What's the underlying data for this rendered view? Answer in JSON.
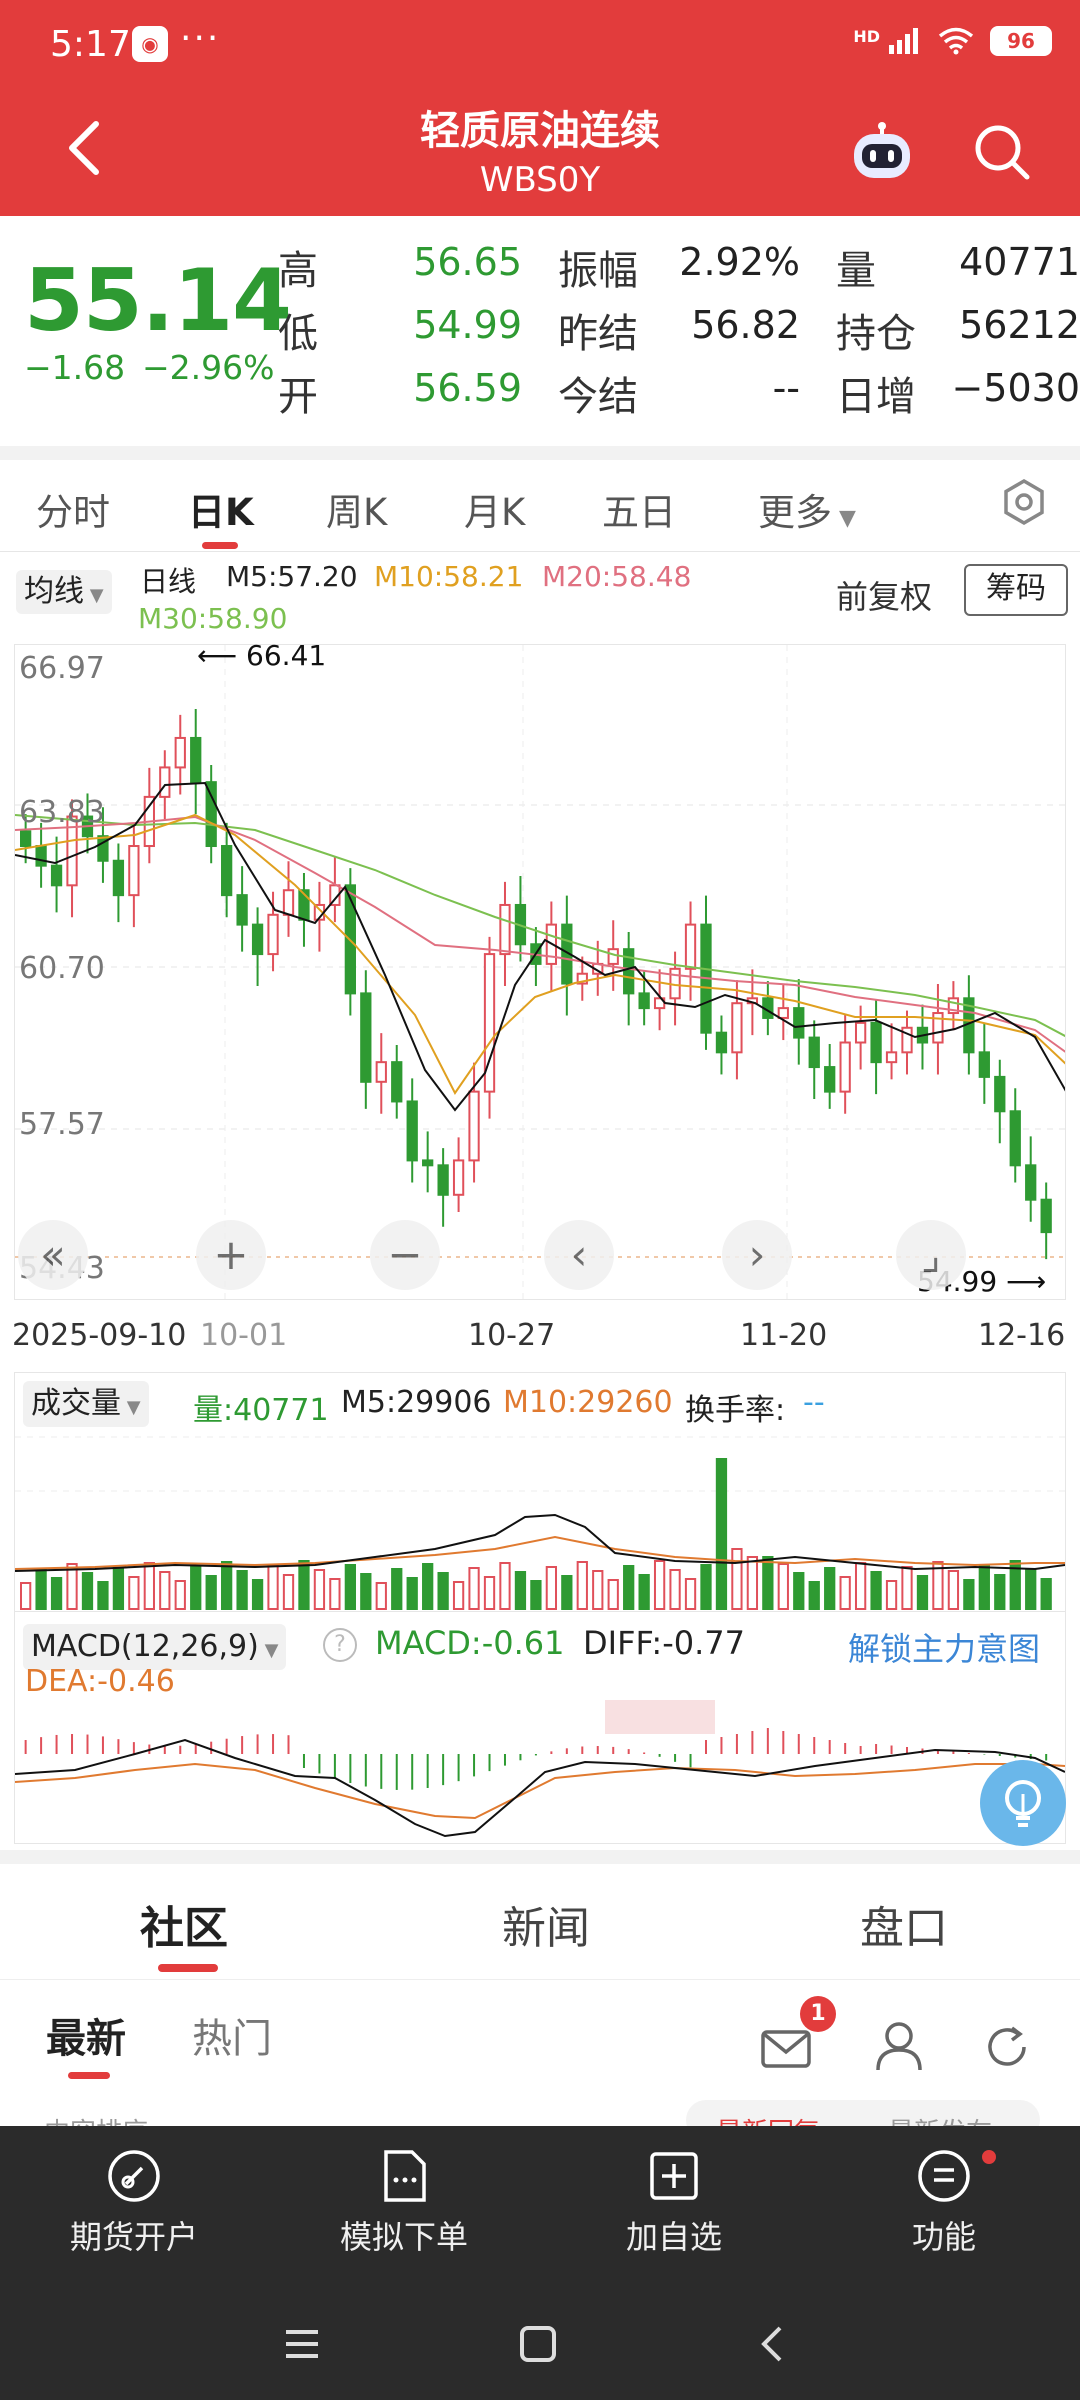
{
  "status_bar": {
    "time": "5:17",
    "app_icon": "app-badge-icon",
    "dots": "···",
    "hd": "HD",
    "battery": "96"
  },
  "header": {
    "title": "轻质原油连续",
    "subtitle": "WBS0Y"
  },
  "quote": {
    "last": "55.14",
    "change": "−1.68",
    "change_pct": "−2.96%",
    "high_label": "高",
    "high": "56.65",
    "low_label": "低",
    "low": "54.99",
    "open_label": "开",
    "open": "56.59",
    "amplitude_label": "振幅",
    "amplitude": "2.92%",
    "prev_settle_label": "昨结",
    "prev_settle": "56.82",
    "settle_label": "今结",
    "settle": "--",
    "volume_label": "量",
    "volume": "40771",
    "open_interest_label": "持仓",
    "open_interest": "56212",
    "daily_change_label": "日增",
    "daily_change": "−5030"
  },
  "period_tabs": [
    "分时",
    "日K",
    "周K",
    "月K",
    "五日",
    "更多"
  ],
  "ma": {
    "selector": "均线",
    "kind": "日线",
    "m5": "M5:57.20",
    "m10": "M10:58.21",
    "m20": "M20:58.48",
    "m30": "M30:58.90",
    "adjust": "前复权",
    "chip": "筹码"
  },
  "price_axis": [
    "66.97",
    "63.83",
    "60.70",
    "57.57",
    "54.43"
  ],
  "date_axis": [
    "2025-09-10",
    "10-01",
    "10-27",
    "11-20",
    "12-16"
  ],
  "marks": {
    "max": "66.41",
    "min": "54.99"
  },
  "volume": {
    "selector": "成交量",
    "vol": "量:40771",
    "m5": "M5:29906",
    "m10": "M10:29260",
    "turnover_label": "换手率:",
    "turnover": "--"
  },
  "macd": {
    "selector": "MACD(12,26,9)",
    "macd": "MACD:-0.61",
    "diff": "DIFF:-0.77",
    "dea": "DEA:-0.46",
    "unlock": "解锁主力意图"
  },
  "section_tabs": [
    "社区",
    "新闻",
    "盘口"
  ],
  "feed_tabs": [
    "最新",
    "热门"
  ],
  "mail_badge": "1",
  "peek": {
    "left": "内容排序",
    "r1": "最新回复",
    "r2": "最新发布"
  },
  "bottom_nav": [
    "期货开户",
    "模拟下单",
    "加自选",
    "功能"
  ],
  "colors": {
    "brand_red": "#e23c3c",
    "down_green": "#2e9a32",
    "up_red": "#e0505a",
    "m10": "#e0a020",
    "m20": "#e07080",
    "m30": "#7cc050"
  },
  "chart_data": {
    "type": "candlestick",
    "ylim": [
      54.43,
      66.97
    ],
    "x_range": [
      "2025-09-10",
      "12-16"
    ],
    "close_approx": [
      63.0,
      62.6,
      62.2,
      63.6,
      63.2,
      62.7,
      62.0,
      63.0,
      64.0,
      64.6,
      65.2,
      64.3,
      63.0,
      62.0,
      61.4,
      60.8,
      61.6,
      62.1,
      61.5,
      61.8,
      62.2,
      60.0,
      58.2,
      58.6,
      57.8,
      56.6,
      56.5,
      55.9,
      56.6,
      58.0,
      60.8,
      61.8,
      61.0,
      60.6,
      61.4,
      60.2,
      60.4,
      60.6,
      60.9,
      60.0,
      59.7,
      59.9,
      60.5,
      61.4,
      59.2,
      58.8,
      59.8,
      59.9,
      59.5,
      59.7,
      59.1,
      58.5,
      58.0,
      59.0,
      59.4,
      58.6,
      58.8,
      59.3,
      59.0,
      59.6,
      59.9,
      58.8,
      58.3,
      57.6,
      56.5,
      55.8,
      55.14
    ]
  }
}
